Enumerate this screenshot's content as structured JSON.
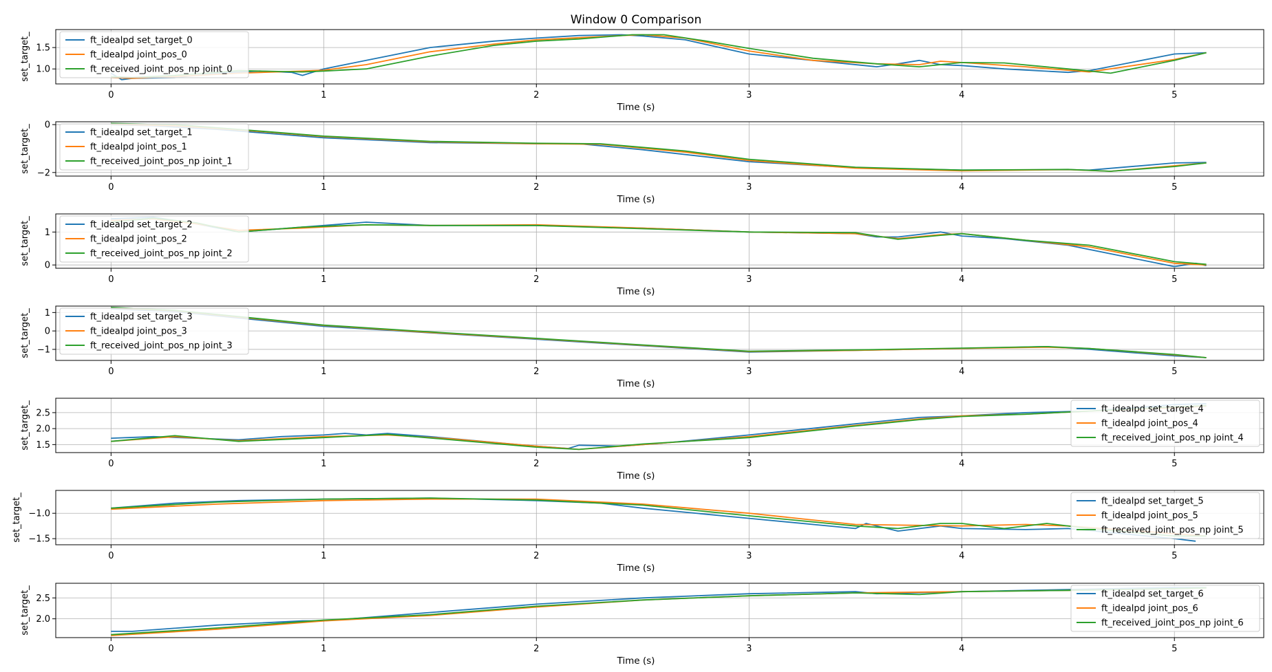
{
  "figure": {
    "title": "Window 0 Comparison"
  },
  "colors": {
    "set_target": "#1f77b4",
    "joint_pos": "#ff7f0e",
    "received": "#2ca02c",
    "grid": "#b0b0b0"
  },
  "chart_data": [
    {
      "type": "line",
      "xlabel": "Time (s)",
      "ylabel": "set_target_",
      "xlim": [
        -0.26,
        5.42
      ],
      "ylim": [
        0.65,
        1.92
      ],
      "yticks": [
        1.0,
        1.5
      ],
      "ytick_labels": [
        "1.0",
        "1.5"
      ],
      "xticks": [
        0,
        1,
        2,
        3,
        4,
        5
      ],
      "xtick_labels": [
        "0",
        "1",
        "2",
        "3",
        "4",
        "5"
      ],
      "grid": true,
      "legend": "upper-left",
      "series": [
        {
          "name": "ft_idealpd set_target_0",
          "x": [
            0,
            0.05,
            0.1,
            0.3,
            0.5,
            0.7,
            0.85,
            0.9,
            1.0,
            1.2,
            1.5,
            1.8,
            2.0,
            2.2,
            2.4,
            2.5,
            2.7,
            3.0,
            3.3,
            3.6,
            3.7,
            3.8,
            3.9,
            4.0,
            4.2,
            4.5,
            4.6,
            5.0,
            5.15
          ],
          "y": [
            0.9,
            0.75,
            0.78,
            0.8,
            0.9,
            0.95,
            0.92,
            0.85,
            1.0,
            1.2,
            1.5,
            1.65,
            1.72,
            1.78,
            1.8,
            1.77,
            1.68,
            1.35,
            1.2,
            1.05,
            1.12,
            1.2,
            1.1,
            1.08,
            1.0,
            0.92,
            0.96,
            1.35,
            1.38
          ]
        },
        {
          "name": "ft_idealpd joint_pos_0",
          "x": [
            0,
            0.1,
            0.3,
            0.6,
            0.9,
            1.0,
            1.2,
            1.5,
            1.8,
            2.0,
            2.2,
            2.4,
            2.5,
            2.7,
            3.0,
            3.3,
            3.6,
            3.8,
            3.9,
            4.0,
            4.3,
            4.6,
            5.0,
            5.15
          ],
          "y": [
            0.8,
            0.78,
            0.82,
            0.9,
            0.95,
            0.97,
            1.1,
            1.4,
            1.58,
            1.68,
            1.73,
            1.78,
            1.8,
            1.72,
            1.42,
            1.2,
            1.12,
            1.1,
            1.18,
            1.15,
            1.05,
            0.93,
            1.22,
            1.38
          ]
        },
        {
          "name": "ft_received_joint_pos_np joint_0",
          "x": [
            0,
            0.1,
            0.3,
            0.6,
            0.9,
            1.0,
            1.2,
            1.5,
            1.8,
            2.0,
            2.2,
            2.45,
            2.6,
            2.8,
            3.0,
            3.3,
            3.6,
            3.8,
            4.0,
            4.2,
            4.5,
            4.7,
            5.0,
            5.15
          ],
          "y": [
            0.82,
            0.8,
            0.85,
            0.96,
            0.93,
            0.95,
            1.0,
            1.3,
            1.55,
            1.65,
            1.7,
            1.8,
            1.8,
            1.65,
            1.48,
            1.25,
            1.12,
            1.05,
            1.15,
            1.14,
            1.0,
            0.9,
            1.2,
            1.38
          ]
        }
      ]
    },
    {
      "type": "line",
      "xlabel": "Time (s)",
      "ylabel": "set_target_",
      "xlim": [
        -0.26,
        5.42
      ],
      "ylim": [
        -2.15,
        0.12
      ],
      "yticks": [
        -2,
        0
      ],
      "ytick_labels": [
        "−2",
        "0"
      ],
      "xticks": [
        0,
        1,
        2,
        3,
        4,
        5
      ],
      "xtick_labels": [
        "0",
        "1",
        "2",
        "3",
        "4",
        "5"
      ],
      "grid": true,
      "legend": "upper-left",
      "series": [
        {
          "name": "ft_idealpd set_target_1",
          "x": [
            0,
            0.2,
            0.5,
            1.0,
            1.5,
            2.0,
            2.2,
            2.5,
            3.0,
            3.5,
            4.0,
            4.5,
            4.6,
            5.0,
            5.15
          ],
          "y": [
            0.0,
            -0.05,
            -0.2,
            -0.55,
            -0.75,
            -0.8,
            -0.8,
            -1.05,
            -1.55,
            -1.8,
            -1.9,
            -1.88,
            -1.9,
            -1.6,
            -1.58
          ]
        },
        {
          "name": "ft_idealpd joint_pos_1",
          "x": [
            0,
            0.3,
            0.6,
            1.0,
            1.5,
            2.0,
            2.3,
            2.7,
            3.0,
            3.5,
            4.0,
            4.5,
            4.7,
            5.0,
            5.15
          ],
          "y": [
            0.02,
            -0.05,
            -0.22,
            -0.5,
            -0.72,
            -0.8,
            -0.82,
            -1.15,
            -1.5,
            -1.82,
            -1.93,
            -1.88,
            -1.95,
            -1.72,
            -1.6
          ]
        },
        {
          "name": "ft_received_joint_pos_np joint_1",
          "x": [
            0,
            0.3,
            0.6,
            1.0,
            1.5,
            2.0,
            2.3,
            2.7,
            3.0,
            3.5,
            4.0,
            4.5,
            4.7,
            5.0,
            5.15
          ],
          "y": [
            0.05,
            0.0,
            -0.2,
            -0.48,
            -0.7,
            -0.78,
            -0.8,
            -1.1,
            -1.45,
            -1.78,
            -1.9,
            -1.87,
            -1.95,
            -1.75,
            -1.6
          ]
        }
      ]
    },
    {
      "type": "line",
      "xlabel": "Time (s)",
      "ylabel": "set_target_",
      "xlim": [
        -0.26,
        5.42
      ],
      "ylim": [
        -0.1,
        1.55
      ],
      "yticks": [
        0,
        1
      ],
      "ytick_labels": [
        "0",
        "1"
      ],
      "xticks": [
        0,
        1,
        2,
        3,
        4,
        5
      ],
      "xtick_labels": [
        "0",
        "1",
        "2",
        "3",
        "4",
        "5"
      ],
      "grid": true,
      "legend": "upper-left",
      "series": [
        {
          "name": "ft_idealpd set_target_2",
          "x": [
            0,
            0.2,
            0.4,
            0.6,
            0.9,
            1.2,
            1.5,
            2.0,
            2.5,
            3.0,
            3.5,
            3.6,
            3.7,
            3.9,
            4.0,
            4.2,
            4.5,
            5.0,
            5.1,
            5.15
          ],
          "y": [
            1.4,
            1.45,
            1.25,
            1.0,
            1.15,
            1.3,
            1.2,
            1.2,
            1.12,
            1.0,
            0.95,
            0.85,
            0.85,
            1.0,
            0.88,
            0.8,
            0.6,
            -0.05,
            0.05,
            -0.02
          ]
        },
        {
          "name": "ft_idealpd joint_pos_2",
          "x": [
            0,
            0.2,
            0.4,
            0.6,
            0.9,
            1.2,
            1.5,
            2.0,
            2.5,
            3.0,
            3.5,
            3.7,
            3.9,
            4.0,
            4.3,
            4.6,
            5.0,
            5.15
          ],
          "y": [
            1.35,
            1.4,
            1.25,
            1.05,
            1.12,
            1.22,
            1.2,
            1.22,
            1.12,
            1.0,
            0.95,
            0.8,
            0.92,
            0.95,
            0.75,
            0.55,
            0.05,
            0.0
          ]
        },
        {
          "name": "ft_received_joint_pos_np joint_2",
          "x": [
            0,
            0.2,
            0.4,
            0.6,
            0.9,
            1.2,
            1.5,
            2.0,
            2.5,
            3.0,
            3.5,
            3.7,
            3.9,
            4.0,
            4.3,
            4.6,
            5.0,
            5.15
          ],
          "y": [
            1.3,
            1.42,
            1.28,
            1.0,
            1.15,
            1.22,
            1.2,
            1.2,
            1.1,
            1.0,
            0.98,
            0.78,
            0.9,
            0.95,
            0.75,
            0.6,
            0.1,
            0.02
          ]
        }
      ]
    },
    {
      "type": "line",
      "xlabel": "Time (s)",
      "ylabel": "set_target_",
      "xlim": [
        -0.26,
        5.42
      ],
      "ylim": [
        -1.6,
        1.35
      ],
      "yticks": [
        -1,
        0,
        1
      ],
      "ytick_labels": [
        "−1",
        "0",
        "1"
      ],
      "xticks": [
        0,
        1,
        2,
        3,
        4,
        5
      ],
      "xtick_labels": [
        "0",
        "1",
        "2",
        "3",
        "4",
        "5"
      ],
      "grid": true,
      "legend": "upper-left",
      "series": [
        {
          "name": "ft_idealpd set_target_3",
          "x": [
            0,
            0.3,
            0.6,
            1.0,
            1.5,
            2.0,
            2.5,
            3.0,
            3.5,
            4.0,
            4.4,
            4.6,
            5.0,
            5.15
          ],
          "y": [
            1.2,
            1.05,
            0.7,
            0.25,
            -0.1,
            -0.45,
            -0.8,
            -1.15,
            -1.05,
            -0.95,
            -0.85,
            -1.0,
            -1.35,
            -1.45
          ]
        },
        {
          "name": "ft_idealpd joint_pos_3",
          "x": [
            0,
            0.3,
            0.6,
            1.0,
            1.5,
            2.0,
            2.5,
            3.0,
            3.5,
            4.0,
            4.4,
            4.6,
            5.0,
            5.15
          ],
          "y": [
            1.25,
            1.1,
            0.75,
            0.3,
            -0.08,
            -0.42,
            -0.78,
            -1.12,
            -1.05,
            -0.95,
            -0.88,
            -0.95,
            -1.3,
            -1.45
          ]
        },
        {
          "name": "ft_received_joint_pos_np joint_3",
          "x": [
            0,
            0.3,
            0.6,
            1.0,
            1.5,
            2.0,
            2.5,
            3.0,
            3.5,
            4.0,
            4.4,
            4.6,
            5.0,
            5.15
          ],
          "y": [
            1.28,
            1.12,
            0.78,
            0.32,
            -0.05,
            -0.4,
            -0.76,
            -1.1,
            -1.03,
            -0.93,
            -0.85,
            -0.95,
            -1.28,
            -1.45
          ]
        }
      ]
    },
    {
      "type": "line",
      "xlabel": "Time (s)",
      "ylabel": "set_target_",
      "xlim": [
        -0.26,
        5.42
      ],
      "ylim": [
        1.25,
        2.95
      ],
      "yticks": [
        1.5,
        2.0,
        2.5
      ],
      "ytick_labels": [
        "1.5",
        "2.0",
        "2.5"
      ],
      "xticks": [
        0,
        1,
        2,
        3,
        4,
        5
      ],
      "xtick_labels": [
        "0",
        "1",
        "2",
        "3",
        "4",
        "5"
      ],
      "grid": true,
      "legend": "upper-right",
      "series": [
        {
          "name": "ft_idealpd set_target_4",
          "x": [
            0,
            0.2,
            0.4,
            0.6,
            0.8,
            1.0,
            1.1,
            1.2,
            1.3,
            1.5,
            2.0,
            2.15,
            2.2,
            2.4,
            2.6,
            3.0,
            3.5,
            3.8,
            4.0,
            4.3,
            4.6,
            5.0,
            5.15
          ],
          "y": [
            1.7,
            1.75,
            1.7,
            1.65,
            1.75,
            1.8,
            1.85,
            1.8,
            1.85,
            1.75,
            1.45,
            1.38,
            1.48,
            1.45,
            1.55,
            1.8,
            2.15,
            2.35,
            2.4,
            2.5,
            2.55,
            2.75,
            2.78
          ]
        },
        {
          "name": "ft_idealpd joint_pos_4",
          "x": [
            0,
            0.3,
            0.6,
            1.0,
            1.3,
            1.6,
            2.0,
            2.2,
            2.5,
            3.0,
            3.5,
            3.8,
            4.0,
            4.3,
            4.6,
            5.0,
            5.15
          ],
          "y": [
            1.6,
            1.75,
            1.62,
            1.75,
            1.8,
            1.68,
            1.45,
            1.35,
            1.5,
            1.75,
            2.1,
            2.3,
            2.4,
            2.45,
            2.55,
            2.65,
            2.7
          ]
        },
        {
          "name": "ft_received_joint_pos_np joint_4",
          "x": [
            0,
            0.3,
            0.6,
            1.0,
            1.3,
            1.6,
            2.0,
            2.2,
            2.5,
            3.0,
            3.5,
            3.8,
            4.0,
            4.3,
            4.6,
            5.0,
            5.15
          ],
          "y": [
            1.6,
            1.78,
            1.6,
            1.72,
            1.82,
            1.65,
            1.42,
            1.35,
            1.52,
            1.72,
            2.08,
            2.28,
            2.38,
            2.45,
            2.55,
            2.68,
            2.72
          ]
        }
      ]
    },
    {
      "type": "line",
      "xlabel": "Time (s)",
      "ylabel": "set_target_",
      "xlim": [
        -0.26,
        5.42
      ],
      "ylim": [
        -1.62,
        -0.55
      ],
      "yticks": [
        -1.5,
        -1.0
      ],
      "ytick_labels": [
        "−1.5",
        "−1.0"
      ],
      "xticks": [
        0,
        1,
        2,
        3,
        4,
        5
      ],
      "xtick_labels": [
        "0",
        "1",
        "2",
        "3",
        "4",
        "5"
      ],
      "grid": true,
      "legend": "upper-right",
      "series": [
        {
          "name": "ft_idealpd set_target_5",
          "x": [
            0,
            0.3,
            0.6,
            1.0,
            1.5,
            2.0,
            2.3,
            2.5,
            3.0,
            3.5,
            3.55,
            3.7,
            3.9,
            4.0,
            4.3,
            4.5,
            5.0,
            5.1
          ],
          "y": [
            -0.9,
            -0.8,
            -0.75,
            -0.72,
            -0.7,
            -0.75,
            -0.8,
            -0.9,
            -1.1,
            -1.3,
            -1.2,
            -1.35,
            -1.25,
            -1.3,
            -1.32,
            -1.3,
            -1.5,
            -1.55
          ]
        },
        {
          "name": "ft_idealpd joint_pos_5",
          "x": [
            0,
            0.5,
            1.0,
            1.5,
            2.0,
            2.5,
            3.0,
            3.5,
            4.0,
            4.3,
            4.5,
            5.0,
            5.15
          ],
          "y": [
            -0.92,
            -0.82,
            -0.75,
            -0.72,
            -0.72,
            -0.82,
            -1.0,
            -1.22,
            -1.25,
            -1.22,
            -1.25,
            -1.4,
            -1.45
          ]
        },
        {
          "name": "ft_received_joint_pos_np joint_5",
          "x": [
            0,
            0.5,
            1.0,
            1.5,
            2.0,
            2.5,
            3.0,
            3.5,
            3.7,
            3.9,
            4.0,
            4.2,
            4.4,
            4.6,
            5.0,
            5.15
          ],
          "y": [
            -0.9,
            -0.78,
            -0.72,
            -0.7,
            -0.74,
            -0.84,
            -1.05,
            -1.25,
            -1.3,
            -1.2,
            -1.2,
            -1.3,
            -1.2,
            -1.3,
            -1.45,
            -1.45
          ]
        }
      ]
    },
    {
      "type": "line",
      "xlabel": "Time (s)",
      "ylabel": "set_target_",
      "xlim": [
        -0.26,
        5.42
      ],
      "ylim": [
        1.55,
        2.85
      ],
      "yticks": [
        2.0,
        2.5
      ],
      "ytick_labels": [
        "2.0",
        "2.5"
      ],
      "xticks": [
        0,
        1,
        2,
        3,
        4,
        5
      ],
      "xtick_labels": [
        "0",
        "1",
        "2",
        "3",
        "4",
        "5"
      ],
      "grid": true,
      "legend": "upper-right",
      "series": [
        {
          "name": "ft_idealpd set_target_6",
          "x": [
            0,
            0.1,
            0.5,
            0.9,
            1.0,
            1.5,
            2.0,
            2.5,
            3.0,
            3.5,
            3.6,
            4.0,
            4.5,
            5.0,
            5.15
          ],
          "y": [
            1.7,
            1.7,
            1.85,
            1.95,
            1.95,
            2.15,
            2.35,
            2.5,
            2.6,
            2.65,
            2.6,
            2.65,
            2.7,
            2.75,
            2.75
          ]
        },
        {
          "name": "ft_idealpd joint_pos_6",
          "x": [
            0,
            0.5,
            1.0,
            1.5,
            2.0,
            2.5,
            3.0,
            3.5,
            4.0,
            4.5,
            5.0,
            5.15
          ],
          "y": [
            1.6,
            1.75,
            1.95,
            2.08,
            2.28,
            2.45,
            2.55,
            2.62,
            2.65,
            2.68,
            2.72,
            2.74
          ]
        },
        {
          "name": "ft_received_joint_pos_np joint_6",
          "x": [
            0,
            0.5,
            1.0,
            1.5,
            2.0,
            2.5,
            3.0,
            3.5,
            3.8,
            4.0,
            4.5,
            5.0,
            5.15
          ],
          "y": [
            1.62,
            1.78,
            1.97,
            2.1,
            2.3,
            2.45,
            2.55,
            2.62,
            2.58,
            2.65,
            2.68,
            2.72,
            2.74
          ]
        }
      ]
    }
  ]
}
